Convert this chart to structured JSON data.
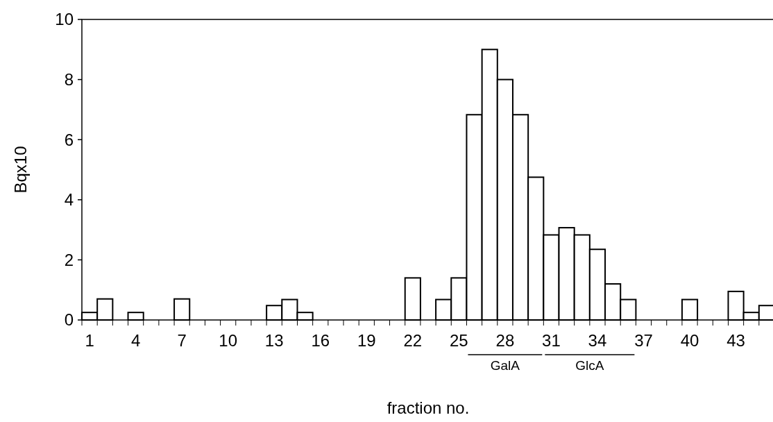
{
  "chart_data": {
    "type": "bar",
    "xlabel": "fraction no.",
    "ylabel": "Bqx10",
    "categories": [
      "1",
      null,
      null,
      "4",
      null,
      null,
      "7",
      null,
      null,
      "10",
      null,
      null,
      "13",
      null,
      null,
      "16",
      null,
      null,
      "19",
      null,
      null,
      "22",
      null,
      null,
      "25",
      null,
      null,
      "28",
      null,
      null,
      "31",
      null,
      null,
      "34",
      null,
      null,
      "37",
      null,
      null,
      "40",
      null,
      null,
      "43",
      null,
      null
    ],
    "values": [
      0.25,
      0.7,
      0,
      0.25,
      0,
      0,
      0.7,
      0,
      0,
      0,
      0,
      0,
      0.48,
      0.68,
      0.25,
      0,
      0,
      0,
      0,
      0,
      0,
      1.4,
      0,
      0.68,
      1.4,
      6.83,
      9,
      8,
      6.83,
      4.75,
      2.83,
      3.07,
      2.83,
      2.35,
      1.2,
      0.68,
      0,
      0,
      0,
      0.68,
      0,
      0,
      0.95,
      0.25,
      0.48
    ],
    "color": "#ffffff",
    "ylim": [
      0,
      10
    ],
    "yticks": [
      0,
      2,
      4,
      6,
      8,
      10
    ],
    "annotations": [
      "GalA",
      "GlcA"
    ]
  }
}
